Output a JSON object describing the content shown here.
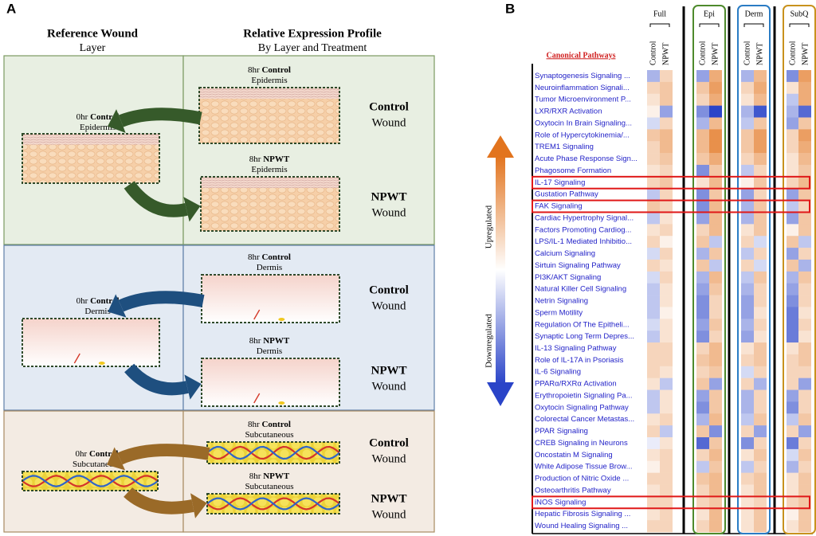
{
  "panel_a": {
    "letter": "A",
    "headers": [
      {
        "title": "Reference Wound",
        "subtitle": "Layer"
      },
      {
        "title": "Relative Expression Profile",
        "subtitle": "By Layer and Treatment"
      }
    ],
    "sections": [
      {
        "layer": "Epidermis",
        "reference": {
          "time": "0hr",
          "group": "Control"
        },
        "profiles": [
          {
            "time": "8hr",
            "group": "Control",
            "wound": "Control",
            "wound_word": "Wound"
          },
          {
            "time": "8hr",
            "group": "NPWT",
            "wound": "NPWT",
            "wound_word": "Wound"
          }
        ]
      },
      {
        "layer": "Dermis",
        "reference": {
          "time": "0hr",
          "group": "Control"
        },
        "profiles": [
          {
            "time": "8hr",
            "group": "Control",
            "wound": "Control",
            "wound_word": "Wound"
          },
          {
            "time": "8hr",
            "group": "NPWT",
            "wound": "NPWT",
            "wound_word": "Wound"
          }
        ]
      },
      {
        "layer": "Subcutaneous",
        "reference": {
          "time": "0hr",
          "group": "Control"
        },
        "profiles": [
          {
            "time": "8hr",
            "group": "Control",
            "wound": "Control",
            "wound_word": "Wound"
          },
          {
            "time": "8hr",
            "group": "NPWT",
            "wound": "NPWT",
            "wound_word": "Wound"
          }
        ]
      }
    ]
  },
  "panel_b": {
    "letter": "B",
    "row_header": "Canonical Pathways",
    "legend": {
      "high": "Upregulated",
      "low": "Downregulated"
    },
    "zlim": [
      -1,
      1
    ],
    "colors": {
      "low": "#2a44c8",
      "mid": "#ffffff",
      "high": "#e2741e"
    },
    "highlight_color": "#e01818",
    "groups": [
      {
        "name": "Full",
        "columns": [
          "Control",
          "NPWT"
        ]
      },
      {
        "name": "Epi",
        "box_color": "#4e8a2c",
        "columns": [
          "Control",
          "NPWT"
        ]
      },
      {
        "name": "Derm",
        "box_color": "#2a7cc4",
        "columns": [
          "Control",
          "NPWT"
        ]
      },
      {
        "name": "SubQ",
        "box_color": "#c8921e",
        "columns": [
          "Control",
          "NPWT"
        ]
      }
    ],
    "rows": [
      {
        "name": "Synaptogenesis Signaling ...",
        "values": [
          -0.4,
          0.3,
          -0.5,
          0.6,
          -0.4,
          0.5,
          -0.6,
          0.7
        ]
      },
      {
        "name": "Neuroinflammation Signali...",
        "values": [
          0.3,
          0.4,
          0.4,
          0.7,
          0.3,
          0.6,
          0.2,
          0.6
        ]
      },
      {
        "name": "Tumor Microenvironment P...",
        "values": [
          0.2,
          0.4,
          0.3,
          0.6,
          0.2,
          0.5,
          -0.3,
          0.6
        ]
      },
      {
        "name": "LXR/RXR Activation",
        "values": [
          0.1,
          -0.5,
          -0.6,
          -1,
          -0.4,
          -0.9,
          -0.4,
          -0.8
        ]
      },
      {
        "name": "Oxytocin In Brain Signaling...",
        "values": [
          -0.2,
          0.3,
          -0.4,
          0.5,
          -0.3,
          0.4,
          -0.5,
          0.4
        ]
      },
      {
        "name": "Role of Hypercytokinemia/...",
        "values": [
          0.4,
          0.5,
          0.5,
          0.8,
          0.4,
          0.7,
          0.3,
          0.7
        ]
      },
      {
        "name": "TREM1 Signaling",
        "values": [
          0.3,
          0.5,
          0.5,
          0.8,
          0.4,
          0.7,
          0.3,
          0.6
        ]
      },
      {
        "name": "Acute Phase Response Sign...",
        "values": [
          0.3,
          0.4,
          0.4,
          0.6,
          0.3,
          0.5,
          0.2,
          0.5
        ]
      },
      {
        "name": "Phagosome Formation",
        "values": [
          0.2,
          0.3,
          -0.6,
          0.4,
          -0.3,
          0.3,
          0.2,
          0.4
        ]
      },
      {
        "name": "IL-17 Signaling",
        "values": [
          0.3,
          0.4,
          0.2,
          0.5,
          0.1,
          0.4,
          0.3,
          0.5
        ],
        "highlight": true
      },
      {
        "name": "Gustation Pathway",
        "values": [
          -0.3,
          0.3,
          -0.6,
          0.4,
          -0.5,
          0.3,
          -0.5,
          0.4
        ]
      },
      {
        "name": "FAK Signaling",
        "values": [
          0.4,
          0.3,
          -0.6,
          0.5,
          -0.4,
          0.4,
          -0.3,
          0.3
        ],
        "highlight": true
      },
      {
        "name": "Cardiac Hypertrophy Signal...",
        "values": [
          -0.3,
          0.2,
          -0.5,
          0.5,
          -0.4,
          0.4,
          -0.5,
          0.4
        ]
      },
      {
        "name": "Factors Promoting Cardiog...",
        "values": [
          0.2,
          0.3,
          0.3,
          0.5,
          0.2,
          0.4,
          0.1,
          0.4
        ]
      },
      {
        "name": "LPS/IL-1 Mediated Inhibitio...",
        "values": [
          0.3,
          0.1,
          0.4,
          -0.3,
          0.3,
          -0.2,
          0.4,
          -0.3
        ]
      },
      {
        "name": "Calcium Signaling",
        "values": [
          -0.2,
          0.3,
          -0.4,
          0.4,
          -0.3,
          0.3,
          -0.5,
          0.3
        ]
      },
      {
        "name": "Sirtuin Signaling Pathway",
        "values": [
          0.3,
          0.2,
          0.4,
          -0.3,
          0.3,
          -0.2,
          0.4,
          -0.4
        ]
      },
      {
        "name": "PI3K/AKT Signaling",
        "values": [
          -0.2,
          0.3,
          -0.4,
          0.5,
          -0.3,
          0.4,
          -0.4,
          0.4
        ]
      },
      {
        "name": "Natural Killer Cell Signaling",
        "values": [
          -0.3,
          0.2,
          -0.5,
          0.4,
          -0.4,
          0.3,
          -0.5,
          0.3
        ]
      },
      {
        "name": "Netrin Signaling",
        "values": [
          -0.3,
          0.2,
          -0.6,
          0.3,
          -0.5,
          0.3,
          -0.6,
          0.3
        ]
      },
      {
        "name": "Sperm Motility",
        "values": [
          -0.3,
          0.1,
          -0.6,
          0.3,
          -0.5,
          0.2,
          -0.7,
          0.2
        ]
      },
      {
        "name": "Regulation Of The Epitheli...",
        "values": [
          -0.2,
          0.2,
          -0.5,
          0.4,
          -0.4,
          0.3,
          -0.7,
          0.3
        ]
      },
      {
        "name": "Synaptic Long Term Depres...",
        "values": [
          -0.3,
          0.2,
          -0.6,
          0.3,
          -0.5,
          0.2,
          -0.7,
          0.2
        ]
      },
      {
        "name": "IL-13 Signaling Pathway",
        "values": [
          0.3,
          0.3,
          0.3,
          0.5,
          0.2,
          0.4,
          0.2,
          0.4
        ]
      },
      {
        "name": "Role of IL-17A in Psoriasis",
        "values": [
          0.3,
          0.3,
          0.4,
          0.5,
          0.3,
          0.4,
          0.3,
          0.4
        ]
      },
      {
        "name": "IL-6 Signaling",
        "values": [
          0.3,
          0.2,
          0.3,
          0.4,
          -0.2,
          0.3,
          0.3,
          0.3
        ]
      },
      {
        "name": "PPARα/RXRα Activation",
        "values": [
          0.2,
          -0.3,
          0.4,
          -0.5,
          0.3,
          -0.4,
          0.3,
          -0.5
        ]
      },
      {
        "name": "Erythropoietin Signaling Pa...",
        "values": [
          -0.3,
          0.2,
          -0.5,
          0.4,
          -0.4,
          0.3,
          -0.5,
          0.3
        ]
      },
      {
        "name": "Oxytocin Signaling Pathway",
        "values": [
          -0.3,
          0.2,
          -0.6,
          0.4,
          -0.4,
          0.3,
          -0.6,
          0.3
        ]
      },
      {
        "name": "Colorectal Cancer Metastas...",
        "values": [
          0.2,
          0.3,
          -0.4,
          0.5,
          -0.3,
          0.4,
          -0.3,
          0.4
        ]
      },
      {
        "name": "PPAR Signaling",
        "values": [
          0.3,
          -0.3,
          0.4,
          -0.6,
          0.3,
          -0.5,
          0.3,
          -0.5
        ]
      },
      {
        "name": "CREB Signaling in Neurons",
        "values": [
          -0.1,
          0.2,
          -0.8,
          0.4,
          -0.6,
          0.3,
          -0.7,
          0.3
        ]
      },
      {
        "name": "Oncostatin M Signaling",
        "values": [
          0.2,
          0.3,
          0.3,
          0.5,
          0.2,
          0.4,
          -0.2,
          0.4
        ]
      },
      {
        "name": "White Adipose Tissue Brow...",
        "values": [
          0.1,
          0.3,
          -0.3,
          0.4,
          -0.3,
          0.3,
          -0.4,
          0.3
        ]
      },
      {
        "name": "Production of Nitric Oxide ...",
        "values": [
          0.3,
          0.3,
          0.4,
          0.5,
          0.3,
          0.4,
          0.2,
          0.4
        ]
      },
      {
        "name": "Osteoarthritis Pathway",
        "values": [
          0.2,
          0.3,
          0.3,
          0.5,
          0.2,
          0.4,
          0.2,
          0.4
        ]
      },
      {
        "name": "iNOS Signaling",
        "values": [
          0.3,
          0.3,
          0.3,
          0.4,
          0.2,
          0.3,
          0.3,
          0.4
        ],
        "highlight": true
      },
      {
        "name": "Hepatic Fibrosis Signaling ...",
        "values": [
          0.2,
          0.3,
          0.2,
          0.5,
          0.2,
          0.4,
          0.1,
          0.4
        ]
      },
      {
        "name": "Wound Healing Signaling ...",
        "values": [
          0.3,
          0.3,
          0.3,
          0.5,
          0.2,
          0.4,
          0.2,
          0.4
        ]
      }
    ]
  }
}
